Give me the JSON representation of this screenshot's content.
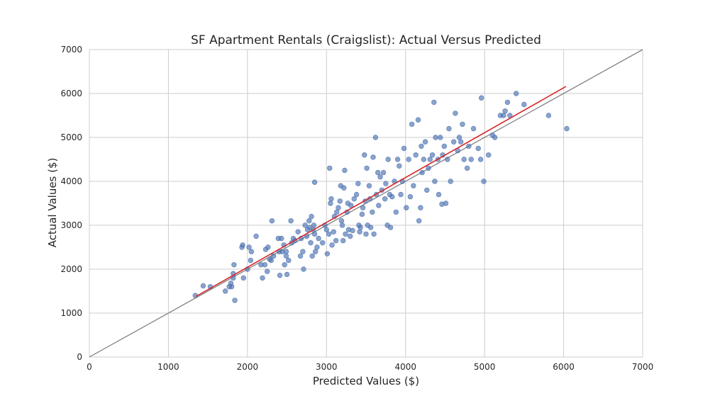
{
  "chart_data": {
    "type": "scatter",
    "title": "SF Apartment Rentals (Craigslist): Actual Versus Predicted",
    "xlabel": "Predicted Values ($)",
    "ylabel": "Actual Values ($)",
    "xlim": [
      0,
      7000
    ],
    "ylim": [
      0,
      7000
    ],
    "xticks": [
      "0",
      "1000",
      "2000",
      "3000",
      "4000",
      "5000",
      "6000",
      "7000"
    ],
    "yticks": [
      "0",
      "1000",
      "2000",
      "3000",
      "4000",
      "5000",
      "6000",
      "7000"
    ],
    "grid": true,
    "point_color": "#4c72b0",
    "identity_line_color": "#808080",
    "fit_line_color": "#d62728",
    "fit_line": {
      "x": [
        1350,
        6030
      ],
      "y": [
        1380,
        6160
      ]
    },
    "identity_line": {
      "x": [
        0,
        7000
      ],
      "y": [
        0,
        7000
      ]
    },
    "series": [
      {
        "values": [
          [
            1340,
            1400
          ],
          [
            1440,
            1620
          ],
          [
            1530,
            1600
          ],
          [
            1720,
            1500
          ],
          [
            1770,
            1600
          ],
          [
            1790,
            1680
          ],
          [
            1800,
            1600
          ],
          [
            1820,
            1800
          ],
          [
            1820,
            1900
          ],
          [
            1830,
            2100
          ],
          [
            1840,
            1290
          ],
          [
            1930,
            2500
          ],
          [
            1940,
            2550
          ],
          [
            1950,
            1800
          ],
          [
            2000,
            2000
          ],
          [
            2020,
            2500
          ],
          [
            2040,
            2200
          ],
          [
            2050,
            2400
          ],
          [
            2110,
            2750
          ],
          [
            2170,
            2100
          ],
          [
            2190,
            1800
          ],
          [
            2220,
            2100
          ],
          [
            2230,
            2450
          ],
          [
            2250,
            1950
          ],
          [
            2260,
            2500
          ],
          [
            2280,
            2230
          ],
          [
            2300,
            2200
          ],
          [
            2310,
            3100
          ],
          [
            2330,
            2300
          ],
          [
            2390,
            2700
          ],
          [
            2400,
            2400
          ],
          [
            2410,
            1860
          ],
          [
            2430,
            2700
          ],
          [
            2440,
            2400
          ],
          [
            2460,
            2550
          ],
          [
            2470,
            2100
          ],
          [
            2490,
            2300
          ],
          [
            2490,
            2400
          ],
          [
            2500,
            1880
          ],
          [
            2520,
            2200
          ],
          [
            2550,
            3100
          ],
          [
            2560,
            2600
          ],
          [
            2580,
            2700
          ],
          [
            2600,
            2650
          ],
          [
            2640,
            2850
          ],
          [
            2670,
            2300
          ],
          [
            2680,
            2700
          ],
          [
            2700,
            2400
          ],
          [
            2710,
            2000
          ],
          [
            2730,
            3000
          ],
          [
            2750,
            2750
          ],
          [
            2760,
            2900
          ],
          [
            2780,
            3100
          ],
          [
            2790,
            2950
          ],
          [
            2800,
            2600
          ],
          [
            2810,
            3200
          ],
          [
            2820,
            2300
          ],
          [
            2830,
            2900
          ],
          [
            2840,
            3000
          ],
          [
            2850,
            2800
          ],
          [
            2850,
            3980
          ],
          [
            2860,
            2400
          ],
          [
            2880,
            2500
          ],
          [
            2900,
            2700
          ],
          [
            2950,
            2600
          ],
          [
            2980,
            3000
          ],
          [
            3000,
            2900
          ],
          [
            3010,
            2350
          ],
          [
            3030,
            2800
          ],
          [
            3040,
            4300
          ],
          [
            3050,
            3500
          ],
          [
            3060,
            3600
          ],
          [
            3070,
            2550
          ],
          [
            3090,
            2850
          ],
          [
            3100,
            3200
          ],
          [
            3120,
            2650
          ],
          [
            3130,
            3300
          ],
          [
            3150,
            3400
          ],
          [
            3170,
            3550
          ],
          [
            3180,
            3900
          ],
          [
            3190,
            3100
          ],
          [
            3200,
            3000
          ],
          [
            3210,
            2650
          ],
          [
            3220,
            3850
          ],
          [
            3230,
            4250
          ],
          [
            3240,
            2800
          ],
          [
            3260,
            3300
          ],
          [
            3270,
            3500
          ],
          [
            3280,
            2900
          ],
          [
            3300,
            2750
          ],
          [
            3310,
            3450
          ],
          [
            3330,
            2880
          ],
          [
            3350,
            3600
          ],
          [
            3380,
            3700
          ],
          [
            3400,
            3950
          ],
          [
            3410,
            3000
          ],
          [
            3420,
            2850
          ],
          [
            3430,
            2950
          ],
          [
            3450,
            3250
          ],
          [
            3460,
            3400
          ],
          [
            3480,
            4600
          ],
          [
            3490,
            3550
          ],
          [
            3500,
            2800
          ],
          [
            3510,
            4300
          ],
          [
            3520,
            3000
          ],
          [
            3540,
            3900
          ],
          [
            3550,
            3600
          ],
          [
            3560,
            2950
          ],
          [
            3580,
            3300
          ],
          [
            3590,
            4550
          ],
          [
            3600,
            2800
          ],
          [
            3620,
            5000
          ],
          [
            3630,
            3700
          ],
          [
            3650,
            4200
          ],
          [
            3660,
            3450
          ],
          [
            3680,
            4100
          ],
          [
            3700,
            3800
          ],
          [
            3720,
            4200
          ],
          [
            3740,
            3600
          ],
          [
            3750,
            3950
          ],
          [
            3770,
            3000
          ],
          [
            3780,
            4500
          ],
          [
            3800,
            3700
          ],
          [
            3810,
            2950
          ],
          [
            3830,
            3650
          ],
          [
            3860,
            4000
          ],
          [
            3880,
            3300
          ],
          [
            3900,
            4500
          ],
          [
            3920,
            4350
          ],
          [
            3940,
            3700
          ],
          [
            3960,
            4000
          ],
          [
            3980,
            4750
          ],
          [
            4010,
            3400
          ],
          [
            4040,
            4500
          ],
          [
            4060,
            3650
          ],
          [
            4080,
            5300
          ],
          [
            4100,
            3900
          ],
          [
            4130,
            4600
          ],
          [
            4160,
            5400
          ],
          [
            4170,
            3100
          ],
          [
            4190,
            3400
          ],
          [
            4200,
            4800
          ],
          [
            4210,
            4200
          ],
          [
            4230,
            4500
          ],
          [
            4250,
            4900
          ],
          [
            4270,
            3800
          ],
          [
            4290,
            4300
          ],
          [
            4310,
            4500
          ],
          [
            4340,
            4600
          ],
          [
            4360,
            5800
          ],
          [
            4370,
            4000
          ],
          [
            4380,
            5000
          ],
          [
            4410,
            4500
          ],
          [
            4420,
            3700
          ],
          [
            4440,
            5000
          ],
          [
            4460,
            3480
          ],
          [
            4470,
            4600
          ],
          [
            4490,
            4800
          ],
          [
            4510,
            3500
          ],
          [
            4530,
            4500
          ],
          [
            4550,
            5200
          ],
          [
            4570,
            4000
          ],
          [
            4610,
            4900
          ],
          [
            4630,
            5550
          ],
          [
            4660,
            4700
          ],
          [
            4680,
            5000
          ],
          [
            4700,
            4900
          ],
          [
            4720,
            5300
          ],
          [
            4740,
            4500
          ],
          [
            4780,
            4300
          ],
          [
            4800,
            4800
          ],
          [
            4830,
            4500
          ],
          [
            4860,
            5200
          ],
          [
            4920,
            4750
          ],
          [
            4950,
            4500
          ],
          [
            4960,
            5900
          ],
          [
            4990,
            4000
          ],
          [
            5050,
            4600
          ],
          [
            5100,
            5050
          ],
          [
            5130,
            5000
          ],
          [
            5200,
            5500
          ],
          [
            5240,
            5500
          ],
          [
            5260,
            5600
          ],
          [
            5290,
            5800
          ],
          [
            5320,
            5500
          ],
          [
            5400,
            6000
          ],
          [
            5500,
            5750
          ],
          [
            5810,
            5500
          ],
          [
            6040,
            5200
          ]
        ]
      }
    ]
  }
}
